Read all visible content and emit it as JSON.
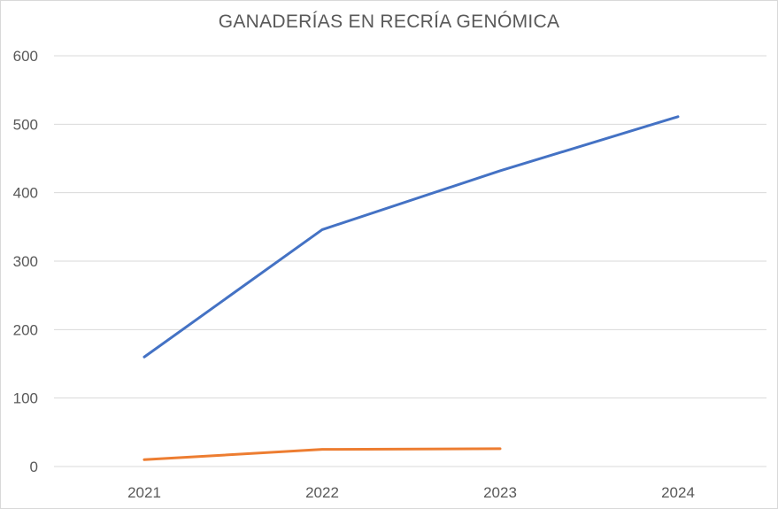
{
  "chart_data": {
    "type": "line",
    "title": "GANADERÍAS EN RECRÍA GENÓMICA",
    "categories": [
      "2021",
      "2022",
      "2023",
      "2024"
    ],
    "ylim": [
      0,
      600
    ],
    "yticks": [
      0,
      100,
      200,
      300,
      400,
      500,
      600
    ],
    "grid": true,
    "legend": "none",
    "series": [
      {
        "color": "#4472C4",
        "values": [
          160,
          346,
          432,
          511
        ]
      },
      {
        "color": "#ED7D31",
        "values": [
          10,
          25,
          26,
          null
        ]
      }
    ]
  }
}
